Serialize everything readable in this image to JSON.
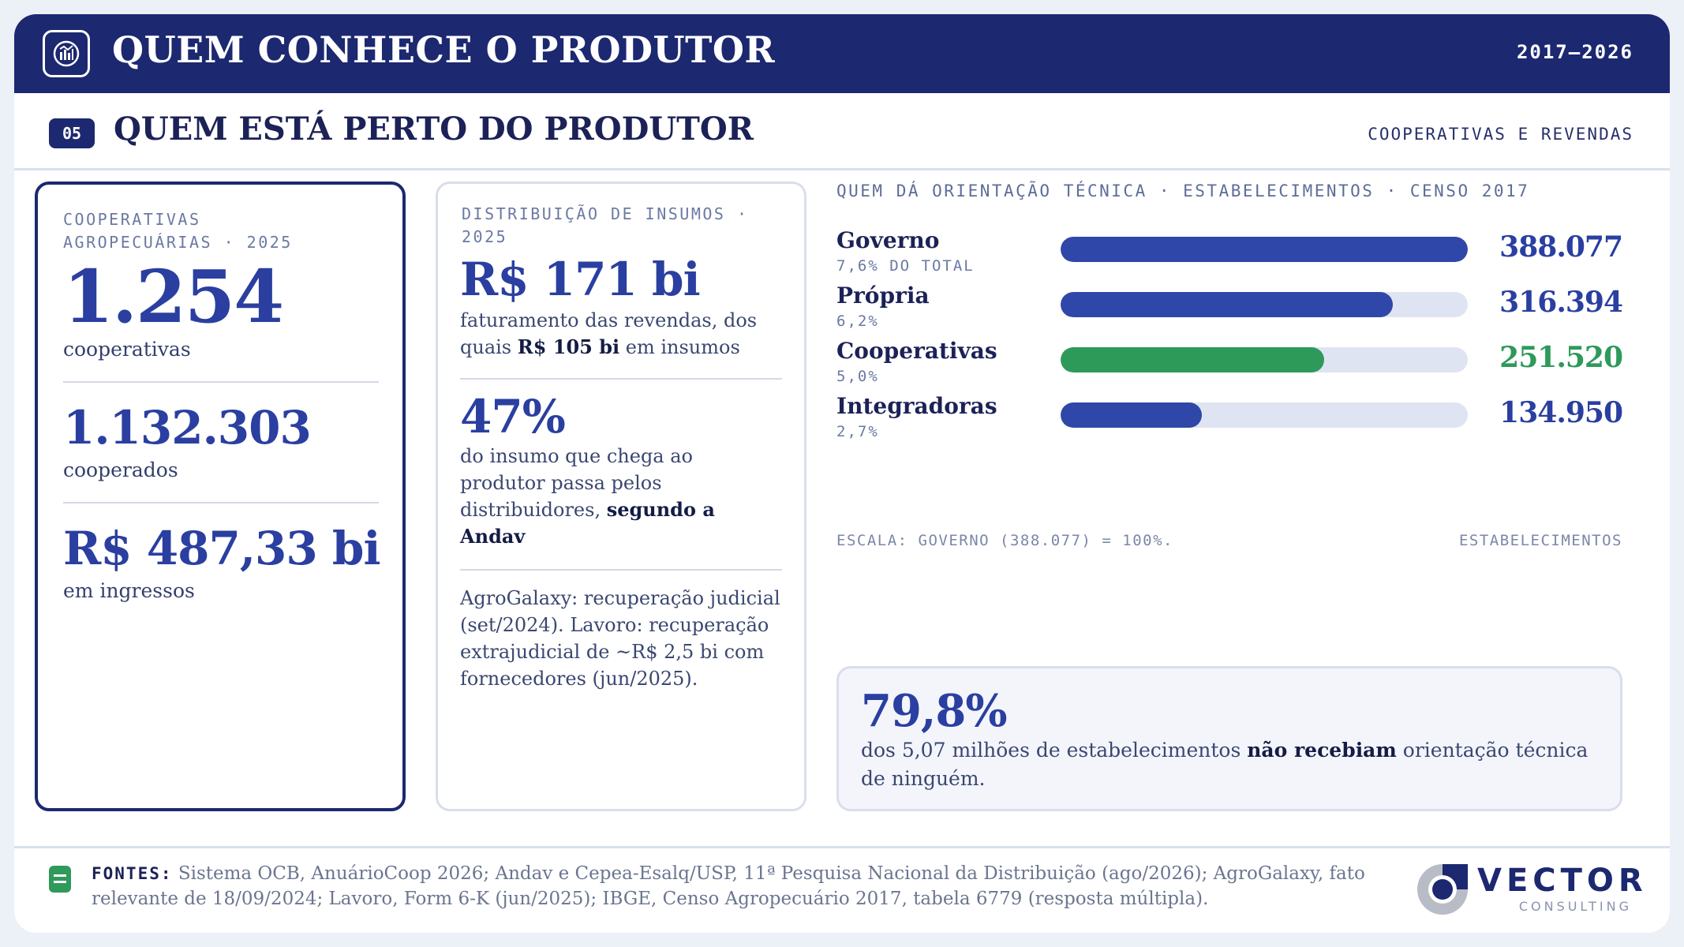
{
  "header": {
    "title": "QUEM CONHECE O PRODUTOR",
    "period": "2017–2026",
    "icon": "chart-report-icon"
  },
  "section": {
    "number": "05",
    "title": "QUEM ESTÁ PERTO DO PRODUTOR",
    "tag": "COOPERATIVAS E REVENDAS"
  },
  "cooperativas": {
    "label": "COOPERATIVAS AGROPECUÁRIAS · 2025",
    "count": "1.254",
    "count_caption": "cooperativas",
    "members": "1.132.303",
    "members_caption": "cooperados",
    "revenue": "R$ 487,33 bi",
    "revenue_caption": "em ingressos"
  },
  "distribuicao": {
    "label": "DISTRIBUIÇÃO DE INSUMOS · 2025",
    "revenue": "R$ 171 bi",
    "revenue_text_a": "faturamento das revendas, dos quais ",
    "revenue_text_b": "R$ 105 bi",
    "revenue_text_c": " em insumos",
    "share": "47%",
    "share_text_a": "do insumo que chega ao produtor passa pelos distribuidores, ",
    "share_text_b": "segundo a Andav",
    "note": "AgroGalaxy: recuperação judicial (set/2024). Lavoro: recuperação extrajudicial de ~R$ 2,5 bi com fornecedores (jun/2025)."
  },
  "chart_data": {
    "type": "bar",
    "orientation": "horizontal",
    "title": "QUEM DÁ ORIENTAÇÃO TÉCNICA · ESTABELECIMENTOS · CENSO 2017",
    "categories": [
      "Governo",
      "Própria",
      "Cooperativas",
      "Integradoras"
    ],
    "values": [
      388077,
      316394,
      251520,
      134950
    ],
    "value_labels": [
      "388.077",
      "316.394",
      "251.520",
      "134.950"
    ],
    "share_labels": [
      "7,6% DO TOTAL",
      "6,2%",
      "5,0%",
      "2,7%"
    ],
    "colors": [
      "#2f47a8",
      "#2f47a8",
      "#2e9a5a",
      "#2f47a8"
    ],
    "value_colors": [
      "#2a3fa0",
      "#2a3fa0",
      "#2e9a5a",
      "#2a3fa0"
    ],
    "xlim": [
      0,
      388077
    ],
    "scale_note": "ESCALA: GOVERNO (388.077) = 100%.",
    "unit_note": "ESTABELECIMENTOS"
  },
  "callout": {
    "value": "79,8%",
    "text_a": "dos 5,07 milhões de estabelecimentos ",
    "text_b": "não recebiam",
    "text_c": " orientação técnica de ninguém."
  },
  "footer": {
    "label": "FONTES:",
    "text": "Sistema OCB, AnuárioCoop 2026; Andav e Cepea-Esalq/USP, 11ª Pesquisa Nacional da Distribuição (ago/2026); AgroGalaxy, fato relevante de 18/09/2024; Lavoro, Form 6-K (jun/2025); IBGE, Censo Agropecuário 2017, tabela 6779 (resposta múltipla).",
    "icon": "document-icon"
  },
  "brand": {
    "name": "VECTOR",
    "sub": "CONSULTING",
    "icon": "vector-logo-icon"
  }
}
